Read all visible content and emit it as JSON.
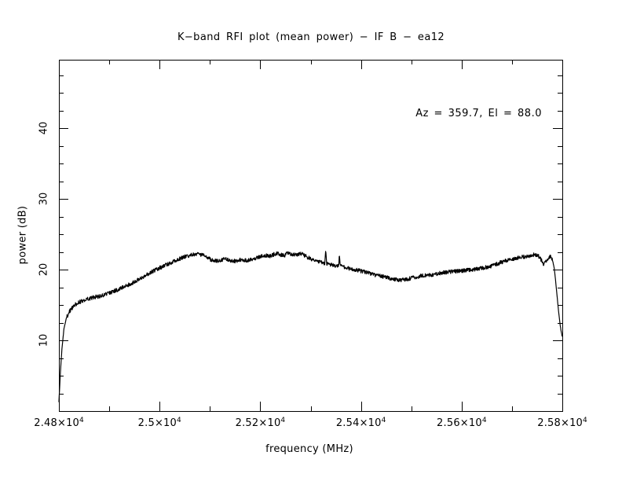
{
  "window": {
    "background": "#ffffff",
    "foreground": "#000000"
  },
  "chart_data": {
    "type": "line",
    "title": "K−band RFI plot (mean power) − IF B − ea12",
    "annotation": "Az = 359.7, El = 88.0",
    "xlabel": "frequency (MHz)",
    "ylabel": "power (dB)",
    "xlim": [
      24800,
      25800
    ],
    "ylim": [
      0,
      49.67
    ],
    "grid": false,
    "legend": "none",
    "line_color": "#000000",
    "noise_db": 0.28,
    "xticks": [
      {
        "value": 24800,
        "mantissa": "2.48×10",
        "exponent": "4"
      },
      {
        "value": 25000,
        "mantissa": "2.5×10",
        "exponent": "4"
      },
      {
        "value": 25200,
        "mantissa": "2.52×10",
        "exponent": "4"
      },
      {
        "value": 25400,
        "mantissa": "2.54×10",
        "exponent": "4"
      },
      {
        "value": 25600,
        "mantissa": "2.56×10",
        "exponent": "4"
      },
      {
        "value": 25800,
        "mantissa": "2.58×10",
        "exponent": "4"
      }
    ],
    "xtick_minor_step": 100,
    "yticks": [
      {
        "value": 10,
        "label": "10"
      },
      {
        "value": 20,
        "label": "20"
      },
      {
        "value": 30,
        "label": "30"
      },
      {
        "value": 40,
        "label": "40"
      }
    ],
    "ytick_minor_step": 2.5,
    "series": [
      {
        "name": "mean power",
        "points": [
          [
            24800,
            1.3
          ],
          [
            24801,
            2.6
          ],
          [
            24803,
            5.5
          ],
          [
            24806,
            8.8
          ],
          [
            24810,
            11.6
          ],
          [
            24815,
            13.2
          ],
          [
            24822,
            14.2
          ],
          [
            24830,
            14.9
          ],
          [
            24840,
            15.4
          ],
          [
            24855,
            15.8
          ],
          [
            24870,
            16.1
          ],
          [
            24885,
            16.3
          ],
          [
            24900,
            16.7
          ],
          [
            24915,
            17.1
          ],
          [
            24930,
            17.6
          ],
          [
            24945,
            18.1
          ],
          [
            24960,
            18.7
          ],
          [
            24975,
            19.3
          ],
          [
            24990,
            19.9
          ],
          [
            25005,
            20.4
          ],
          [
            25020,
            20.9
          ],
          [
            25035,
            21.4
          ],
          [
            25050,
            21.8
          ],
          [
            25065,
            22.1
          ],
          [
            25080,
            22.2
          ],
          [
            25095,
            21.7
          ],
          [
            25105,
            21.3
          ],
          [
            25115,
            21.2
          ],
          [
            25130,
            21.5
          ],
          [
            25140,
            21.3
          ],
          [
            25150,
            21.2
          ],
          [
            25160,
            21.4
          ],
          [
            25175,
            21.3
          ],
          [
            25190,
            21.6
          ],
          [
            25200,
            21.8
          ],
          [
            25210,
            22.0
          ],
          [
            25220,
            21.9
          ],
          [
            25232,
            22.3
          ],
          [
            25240,
            22.1
          ],
          [
            25248,
            22.0
          ],
          [
            25255,
            22.4
          ],
          [
            25262,
            22.2
          ],
          [
            25270,
            22.1
          ],
          [
            25280,
            22.3
          ],
          [
            25290,
            21.9
          ],
          [
            25300,
            21.5
          ],
          [
            25310,
            21.2
          ],
          [
            25320,
            21.0
          ],
          [
            25328,
            20.9
          ],
          [
            25330,
            22.7
          ],
          [
            25332,
            20.8
          ],
          [
            25340,
            20.7
          ],
          [
            25348,
            20.6
          ],
          [
            25356,
            20.5
          ],
          [
            25357,
            22.2
          ],
          [
            25359,
            20.5
          ],
          [
            25370,
            20.3
          ],
          [
            25380,
            20.1
          ],
          [
            25390,
            20.0
          ],
          [
            25400,
            19.8
          ],
          [
            25415,
            19.5
          ],
          [
            25430,
            19.2
          ],
          [
            25445,
            19.0
          ],
          [
            25460,
            18.7
          ],
          [
            25475,
            18.5
          ],
          [
            25490,
            18.6
          ],
          [
            25505,
            18.9
          ],
          [
            25520,
            19.1
          ],
          [
            25535,
            19.2
          ],
          [
            25550,
            19.4
          ],
          [
            25565,
            19.6
          ],
          [
            25580,
            19.7
          ],
          [
            25595,
            19.8
          ],
          [
            25610,
            19.9
          ],
          [
            25625,
            20.0
          ],
          [
            25640,
            20.2
          ],
          [
            25655,
            20.4
          ],
          [
            25670,
            20.8
          ],
          [
            25685,
            21.2
          ],
          [
            25700,
            21.5
          ],
          [
            25715,
            21.7
          ],
          [
            25730,
            21.9
          ],
          [
            25745,
            22.1
          ],
          [
            25755,
            21.8
          ],
          [
            25763,
            20.7
          ],
          [
            25770,
            21.3
          ],
          [
            25776,
            21.8
          ],
          [
            25780,
            21.5
          ],
          [
            25784,
            20.2
          ],
          [
            25788,
            17.5
          ],
          [
            25792,
            14.5
          ],
          [
            25796,
            12.0
          ],
          [
            25800,
            10.4
          ]
        ]
      }
    ]
  }
}
